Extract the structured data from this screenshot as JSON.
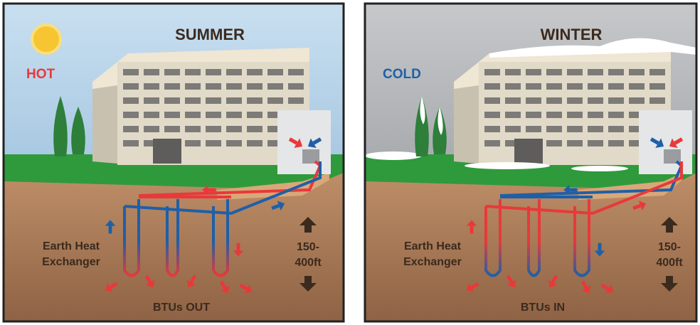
{
  "panels": [
    {
      "title": "SUMMER",
      "temperature": "HOT",
      "exchanger_label": [
        "Earth Heat",
        "Exchanger"
      ],
      "depth_label": [
        "150-",
        "400ft"
      ],
      "btu_label": "BTUs OUT"
    },
    {
      "title": "WINTER",
      "temperature": "COLD",
      "exchanger_label": [
        "Earth Heat",
        "Exchanger"
      ],
      "depth_label": [
        "150-",
        "400ft"
      ],
      "btu_label": "BTUs IN"
    }
  ]
}
